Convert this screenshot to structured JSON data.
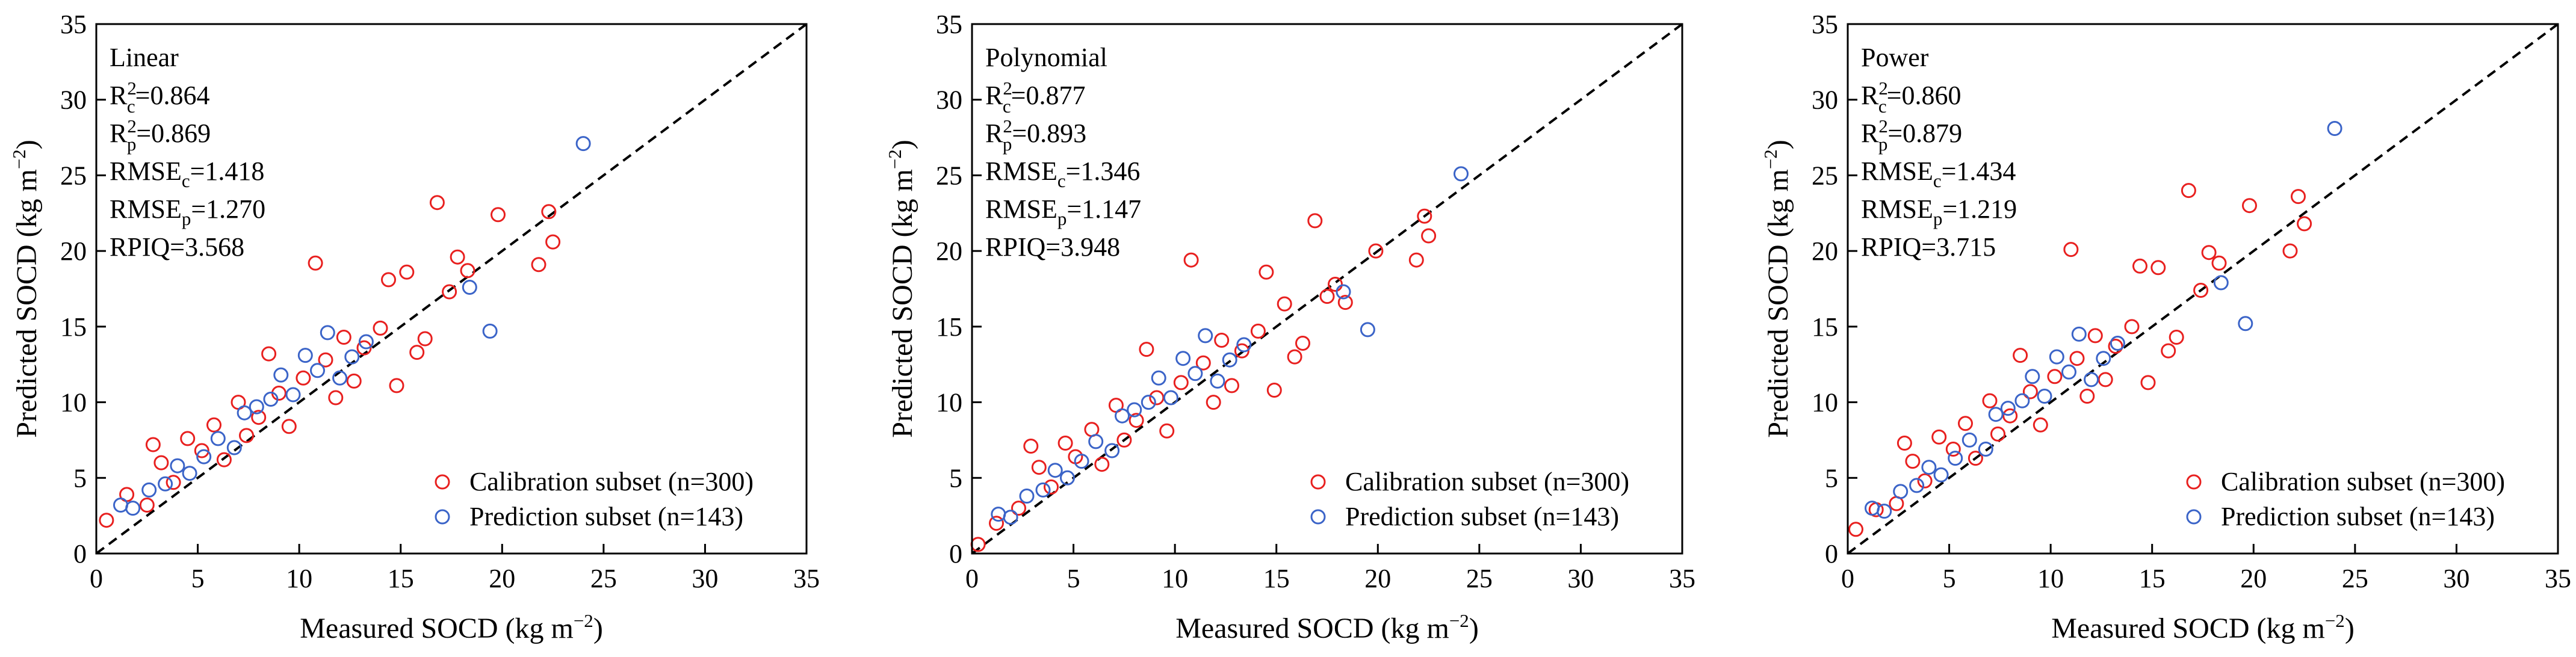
{
  "figure": {
    "panel_count": 3
  },
  "colors": {
    "calibration": "#e8201f",
    "prediction": "#3b64c8",
    "axis": "#000000",
    "reference_line": "#000000"
  },
  "chart_data": [
    {
      "type": "scatter",
      "model": "Linear",
      "xlabel": "Measured SOCD (kg m",
      "xlabel_unit_exp": "−2",
      "xlabel_close": ")",
      "ylabel": "Predicted SOCD (kg m",
      "ylabel_unit_exp": "−2",
      "ylabel_close": ")",
      "xlim": [
        0,
        35
      ],
      "ylim": [
        0,
        35
      ],
      "xticks": [
        0,
        5,
        10,
        15,
        20,
        25,
        30,
        35
      ],
      "yticks": [
        0,
        5,
        10,
        15,
        20,
        25,
        30,
        35
      ],
      "reference_line": "1:1",
      "stats": [
        {
          "base": "R",
          "sup": "2",
          "sub": "c",
          "eq": "=0.864"
        },
        {
          "base": "R",
          "sup": "2",
          "sub": "p",
          "eq": "=0.869"
        },
        {
          "base": "RMSE",
          "sup": "",
          "sub": "c",
          "eq": "=1.418"
        },
        {
          "base": "RMSE",
          "sup": "",
          "sub": "p",
          "eq": "=1.270"
        },
        {
          "base": "RPIQ",
          "sup": "",
          "sub": "",
          "eq": "=3.568"
        }
      ],
      "legend": {
        "position": "bottom-right",
        "entries": [
          "Calibration subset (n=300)",
          "Prediction subset (n=143)"
        ]
      },
      "series": [
        {
          "name": "Calibration subset (n=300)",
          "points": [
            [
              0.5,
              2.2
            ],
            [
              1.5,
              3.9
            ],
            [
              2.5,
              3.2
            ],
            [
              2.8,
              7.2
            ],
            [
              3.2,
              6.0
            ],
            [
              3.8,
              4.7
            ],
            [
              4.5,
              7.6
            ],
            [
              5.2,
              6.8
            ],
            [
              5.8,
              8.5
            ],
            [
              6.3,
              6.2
            ],
            [
              7.0,
              10.0
            ],
            [
              7.4,
              7.8
            ],
            [
              8.0,
              9.0
            ],
            [
              8.5,
              13.2
            ],
            [
              9.0,
              10.6
            ],
            [
              9.5,
              8.4
            ],
            [
              10.2,
              11.6
            ],
            [
              10.8,
              19.2
            ],
            [
              11.3,
              12.8
            ],
            [
              11.8,
              10.3
            ],
            [
              12.2,
              14.3
            ],
            [
              12.7,
              11.4
            ],
            [
              13.2,
              13.6
            ],
            [
              14.0,
              14.9
            ],
            [
              14.4,
              18.1
            ],
            [
              14.8,
              11.1
            ],
            [
              15.3,
              18.6
            ],
            [
              15.8,
              13.3
            ],
            [
              16.2,
              14.2
            ],
            [
              16.8,
              23.2
            ],
            [
              17.4,
              17.3
            ],
            [
              17.8,
              19.6
            ],
            [
              18.3,
              18.7
            ],
            [
              19.8,
              22.4
            ],
            [
              21.8,
              19.1
            ],
            [
              22.3,
              22.6
            ],
            [
              22.5,
              20.6
            ]
          ]
        },
        {
          "name": "Prediction subset (n=143)",
          "points": [
            [
              1.2,
              3.2
            ],
            [
              1.8,
              3.0
            ],
            [
              2.6,
              4.2
            ],
            [
              3.4,
              4.6
            ],
            [
              4.0,
              5.8
            ],
            [
              4.6,
              5.3
            ],
            [
              5.3,
              6.4
            ],
            [
              6.0,
              7.6
            ],
            [
              6.8,
              7.0
            ],
            [
              7.3,
              9.3
            ],
            [
              7.9,
              9.7
            ],
            [
              8.6,
              10.2
            ],
            [
              9.1,
              11.8
            ],
            [
              9.7,
              10.5
            ],
            [
              10.3,
              13.1
            ],
            [
              10.9,
              12.1
            ],
            [
              11.4,
              14.6
            ],
            [
              12.0,
              11.6
            ],
            [
              12.6,
              13.0
            ],
            [
              13.3,
              14.0
            ],
            [
              18.4,
              17.6
            ],
            [
              19.4,
              14.7
            ],
            [
              24.0,
              27.1
            ]
          ]
        }
      ]
    },
    {
      "type": "scatter",
      "model": "Polynomial",
      "xlabel": "Measured SOCD (kg m",
      "xlabel_unit_exp": "−2",
      "xlabel_close": ")",
      "ylabel": "Predicted SOCD (kg m",
      "ylabel_unit_exp": "−2",
      "ylabel_close": ")",
      "xlim": [
        0,
        35
      ],
      "ylim": [
        0,
        35
      ],
      "xticks": [
        0,
        5,
        10,
        15,
        20,
        25,
        30,
        35
      ],
      "yticks": [
        0,
        5,
        10,
        15,
        20,
        25,
        30,
        35
      ],
      "reference_line": "1:1",
      "stats": [
        {
          "base": "R",
          "sup": "2",
          "sub": "c",
          "eq": "=0.877"
        },
        {
          "base": "R",
          "sup": "2",
          "sub": "p",
          "eq": "=0.893"
        },
        {
          "base": "RMSE",
          "sup": "",
          "sub": "c",
          "eq": "=1.346"
        },
        {
          "base": "RMSE",
          "sup": "",
          "sub": "p",
          "eq": "=1.147"
        },
        {
          "base": "RPIQ",
          "sup": "",
          "sub": "",
          "eq": "=3.948"
        }
      ],
      "legend": {
        "position": "bottom-right",
        "entries": [
          "Calibration subset (n=300)",
          "Prediction subset (n=143)"
        ]
      },
      "series": [
        {
          "name": "Calibration subset (n=300)",
          "points": [
            [
              0.3,
              0.6
            ],
            [
              1.2,
              2.0
            ],
            [
              2.3,
              3.0
            ],
            [
              2.9,
              7.1
            ],
            [
              3.3,
              5.7
            ],
            [
              3.9,
              4.4
            ],
            [
              4.6,
              7.3
            ],
            [
              5.1,
              6.4
            ],
            [
              5.9,
              8.2
            ],
            [
              6.4,
              5.9
            ],
            [
              7.1,
              9.8
            ],
            [
              7.5,
              7.5
            ],
            [
              8.1,
              8.8
            ],
            [
              8.6,
              13.5
            ],
            [
              9.1,
              10.3
            ],
            [
              9.6,
              8.1
            ],
            [
              10.3,
              11.3
            ],
            [
              10.8,
              19.4
            ],
            [
              11.4,
              12.6
            ],
            [
              11.9,
              10.0
            ],
            [
              12.3,
              14.1
            ],
            [
              12.8,
              11.1
            ],
            [
              13.3,
              13.4
            ],
            [
              14.1,
              14.7
            ],
            [
              14.5,
              18.6
            ],
            [
              14.9,
              10.8
            ],
            [
              15.4,
              16.5
            ],
            [
              15.9,
              13.0
            ],
            [
              16.3,
              13.9
            ],
            [
              16.9,
              22.0
            ],
            [
              17.5,
              17.0
            ],
            [
              17.9,
              17.8
            ],
            [
              18.4,
              16.6
            ],
            [
              19.9,
              20.0
            ],
            [
              21.9,
              19.4
            ],
            [
              22.3,
              22.3
            ],
            [
              22.5,
              21.0
            ]
          ]
        },
        {
          "name": "Prediction subset (n=143)",
          "points": [
            [
              1.3,
              2.6
            ],
            [
              1.9,
              2.4
            ],
            [
              2.7,
              3.8
            ],
            [
              3.5,
              4.2
            ],
            [
              4.1,
              5.5
            ],
            [
              4.7,
              5.0
            ],
            [
              5.4,
              6.1
            ],
            [
              6.1,
              7.4
            ],
            [
              6.9,
              6.8
            ],
            [
              7.4,
              9.1
            ],
            [
              8.0,
              9.5
            ],
            [
              8.7,
              10.0
            ],
            [
              9.2,
              11.6
            ],
            [
              9.8,
              10.3
            ],
            [
              10.4,
              12.9
            ],
            [
              11.0,
              11.9
            ],
            [
              11.5,
              14.4
            ],
            [
              12.1,
              11.4
            ],
            [
              12.7,
              12.8
            ],
            [
              13.4,
              13.8
            ],
            [
              18.3,
              17.3
            ],
            [
              19.5,
              14.8
            ],
            [
              24.1,
              25.1
            ]
          ]
        }
      ]
    },
    {
      "type": "scatter",
      "model": "Power",
      "xlabel": "Measured SOCD (kg m",
      "xlabel_unit_exp": "−2",
      "xlabel_close": ")",
      "ylabel": "Predicted SOCD (kg m",
      "ylabel_unit_exp": "−2",
      "ylabel_close": ")",
      "xlim": [
        0,
        35
      ],
      "ylim": [
        0,
        35
      ],
      "xticks": [
        0,
        5,
        10,
        15,
        20,
        25,
        30,
        35
      ],
      "yticks": [
        0,
        5,
        10,
        15,
        20,
        25,
        30,
        35
      ],
      "reference_line": "1:1",
      "stats": [
        {
          "base": "R",
          "sup": "2",
          "sub": "c",
          "eq": "=0.860"
        },
        {
          "base": "R",
          "sup": "2",
          "sub": "p",
          "eq": "=0.879"
        },
        {
          "base": "RMSE",
          "sup": "",
          "sub": "c",
          "eq": "=1.434"
        },
        {
          "base": "RMSE",
          "sup": "",
          "sub": "p",
          "eq": "=1.219"
        },
        {
          "base": "RPIQ",
          "sup": "",
          "sub": "",
          "eq": "=3.715"
        }
      ],
      "legend": {
        "position": "bottom-right",
        "entries": [
          "Calibration subset (n=300)",
          "Prediction subset (n=143)"
        ]
      },
      "series": [
        {
          "name": "Calibration subset (n=300)",
          "points": [
            [
              0.4,
              1.6
            ],
            [
              1.4,
              2.9
            ],
            [
              2.4,
              3.3
            ],
            [
              2.8,
              7.3
            ],
            [
              3.2,
              6.1
            ],
            [
              3.8,
              4.8
            ],
            [
              4.5,
              7.7
            ],
            [
              5.2,
              6.9
            ],
            [
              5.8,
              8.6
            ],
            [
              6.3,
              6.3
            ],
            [
              7.0,
              10.1
            ],
            [
              7.4,
              7.9
            ],
            [
              8.0,
              9.1
            ],
            [
              8.5,
              13.1
            ],
            [
              9.0,
              10.7
            ],
            [
              9.5,
              8.5
            ],
            [
              10.2,
              11.7
            ],
            [
              11.0,
              20.1
            ],
            [
              11.3,
              12.9
            ],
            [
              11.8,
              10.4
            ],
            [
              12.2,
              14.4
            ],
            [
              12.7,
              11.5
            ],
            [
              13.2,
              13.7
            ],
            [
              14.0,
              15.0
            ],
            [
              14.4,
              19.0
            ],
            [
              14.8,
              11.3
            ],
            [
              15.3,
              18.9
            ],
            [
              15.8,
              13.4
            ],
            [
              16.2,
              14.3
            ],
            [
              16.8,
              24.0
            ],
            [
              17.4,
              17.4
            ],
            [
              17.8,
              19.9
            ],
            [
              18.3,
              19.2
            ],
            [
              19.8,
              23.0
            ],
            [
              21.8,
              20.0
            ],
            [
              22.2,
              23.6
            ],
            [
              22.5,
              21.8
            ]
          ]
        },
        {
          "name": "Prediction subset (n=143)",
          "points": [
            [
              1.2,
              3.0
            ],
            [
              1.8,
              2.8
            ],
            [
              2.6,
              4.1
            ],
            [
              3.4,
              4.5
            ],
            [
              4.0,
              5.7
            ],
            [
              4.6,
              5.2
            ],
            [
              5.3,
              6.3
            ],
            [
              6.0,
              7.5
            ],
            [
              6.8,
              6.9
            ],
            [
              7.3,
              9.2
            ],
            [
              7.9,
              9.6
            ],
            [
              8.6,
              10.1
            ],
            [
              9.1,
              11.7
            ],
            [
              9.7,
              10.4
            ],
            [
              10.3,
              13.0
            ],
            [
              10.9,
              12.0
            ],
            [
              11.4,
              14.5
            ],
            [
              12.0,
              11.5
            ],
            [
              12.6,
              12.9
            ],
            [
              13.3,
              13.9
            ],
            [
              18.4,
              17.9
            ],
            [
              19.6,
              15.2
            ],
            [
              24.0,
              28.1
            ]
          ]
        }
      ]
    }
  ]
}
